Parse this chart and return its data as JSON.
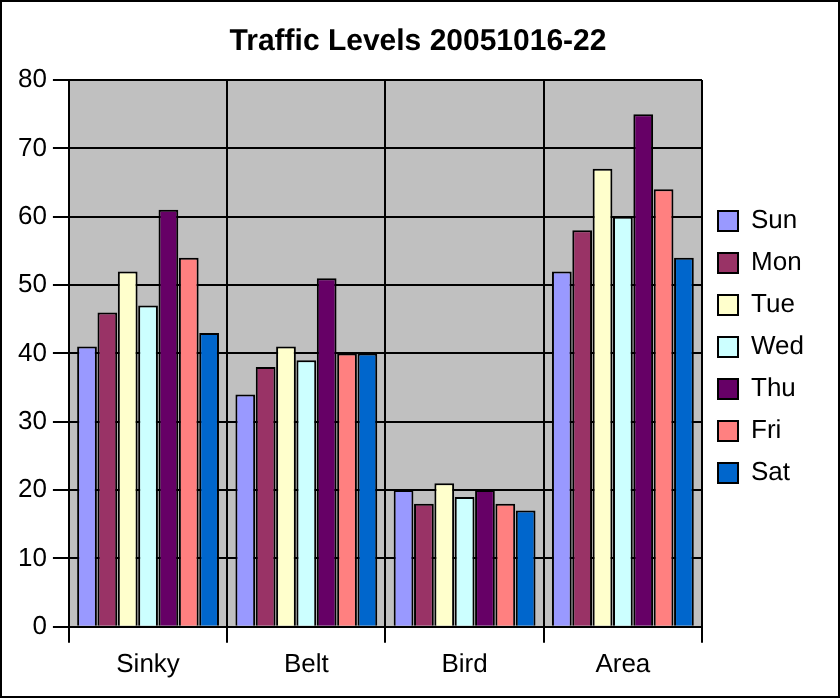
{
  "chart_data": {
    "type": "bar",
    "title": "Traffic Levels 20051016-22",
    "categories": [
      "Sinky",
      "Belt",
      "Bird",
      "Area"
    ],
    "series": [
      {
        "name": "Sun",
        "color": "#9999ff",
        "values": [
          41,
          34,
          20,
          52
        ]
      },
      {
        "name": "Mon",
        "color": "#993366",
        "values": [
          46,
          38,
          18,
          58
        ]
      },
      {
        "name": "Tue",
        "color": "#ffffcc",
        "values": [
          52,
          41,
          21,
          67
        ]
      },
      {
        "name": "Wed",
        "color": "#ccffff",
        "values": [
          47,
          39,
          19,
          60
        ]
      },
      {
        "name": "Thu",
        "color": "#660066",
        "values": [
          61,
          51,
          20,
          75
        ]
      },
      {
        "name": "Fri",
        "color": "#ff8080",
        "values": [
          54,
          40,
          18,
          64
        ]
      },
      {
        "name": "Sat",
        "color": "#0066cc",
        "values": [
          43,
          40,
          17,
          54
        ]
      }
    ],
    "ylim": [
      0,
      80
    ],
    "yticks": [
      0,
      10,
      20,
      30,
      40,
      50,
      60,
      70,
      80
    ],
    "grid": true,
    "legend": "right"
  }
}
